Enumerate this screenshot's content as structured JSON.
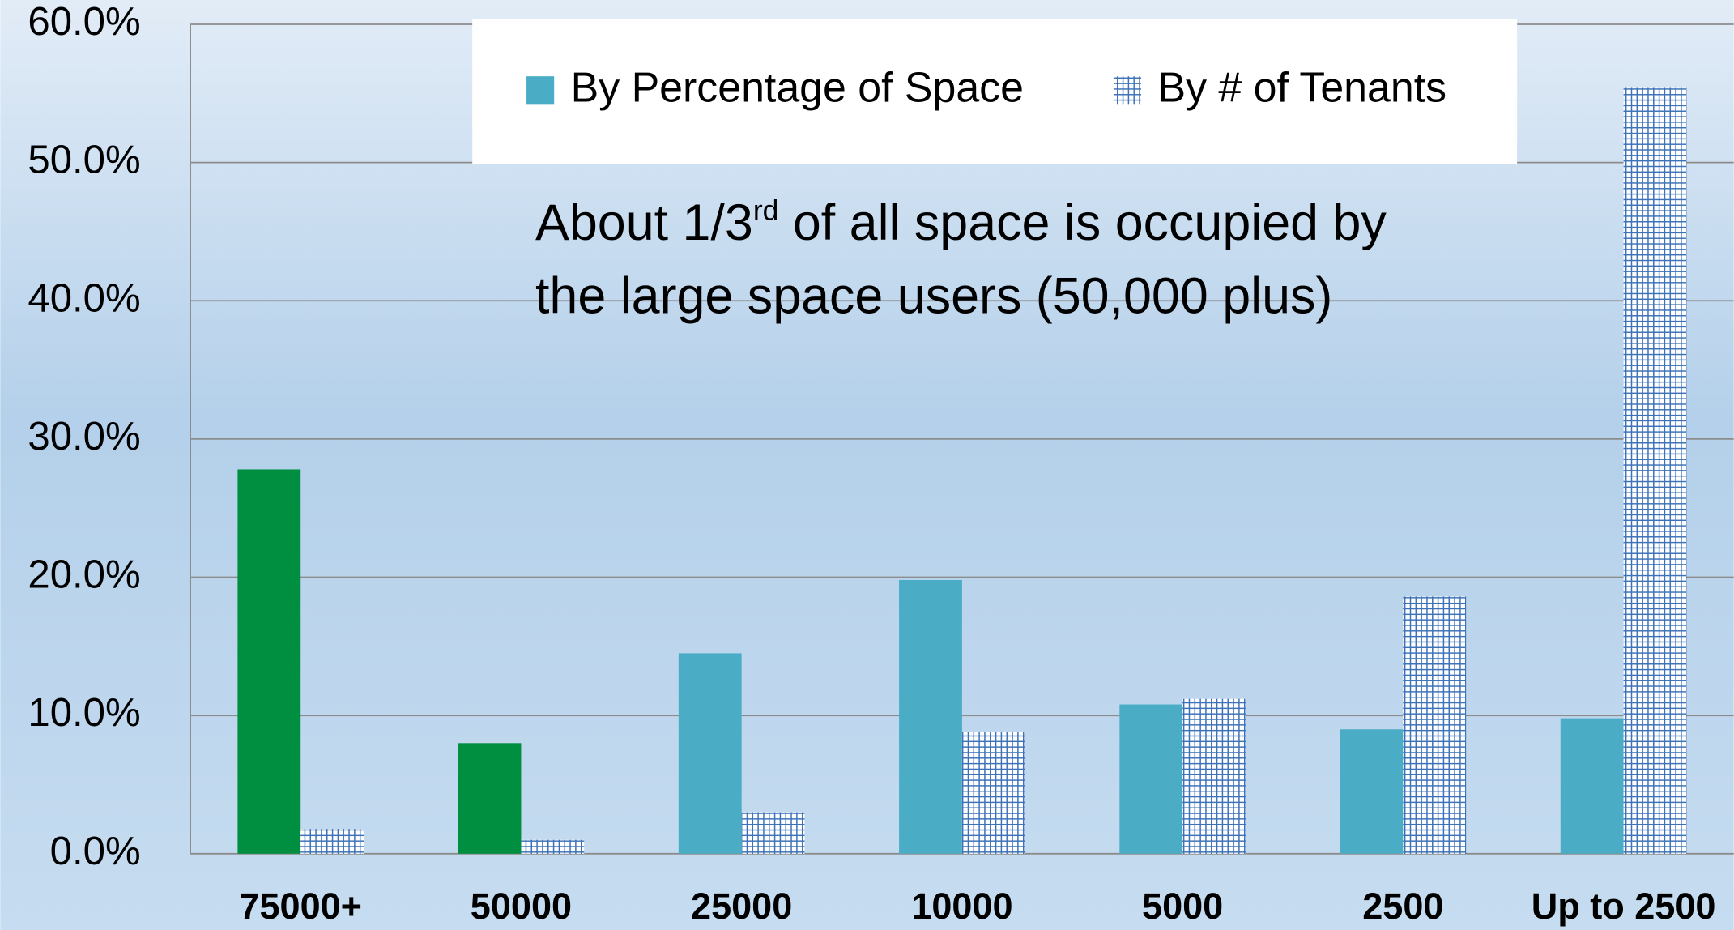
{
  "chart_data": {
    "type": "bar",
    "categories": [
      "75000+",
      "50000",
      "25000",
      "10000",
      "5000",
      "2500",
      "Up to 2500"
    ],
    "series": [
      {
        "name": "By Percentage of Space",
        "color": "#4bacc6",
        "colors": [
          "#008e40",
          "#008e40",
          "#4bacc6",
          "#4bacc6",
          "#4bacc6",
          "#4bacc6",
          "#4bacc6"
        ],
        "values": [
          27.8,
          8.0,
          14.5,
          19.8,
          10.8,
          9.0,
          9.8
        ]
      },
      {
        "name": "By # of Tenants",
        "color": "#3d72b8",
        "pattern": "grid",
        "values": [
          1.8,
          1.0,
          3.0,
          8.8,
          11.2,
          18.6,
          55.4
        ]
      }
    ],
    "ylim": [
      0,
      60
    ],
    "yticks": [
      {
        "value": 0,
        "label": "0.0%"
      },
      {
        "value": 10,
        "label": "10.0%"
      },
      {
        "value": 20,
        "label": "20.0%"
      },
      {
        "value": 30,
        "label": "30.0%"
      },
      {
        "value": 40,
        "label": "40.0%"
      },
      {
        "value": 50,
        "label": "50.0%"
      },
      {
        "value": 60,
        "label": "60.0%"
      }
    ],
    "grid": true,
    "legend": "top",
    "annotation": [
      "About 1/3",
      "rd",
      " of all space is occupied by the large space users (50,000 plus)"
    ]
  }
}
